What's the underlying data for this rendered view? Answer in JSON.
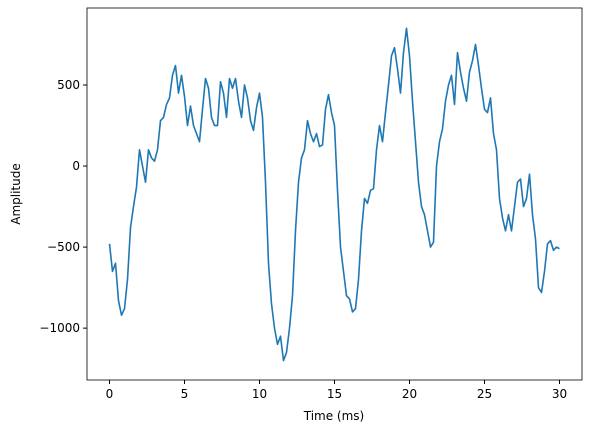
{
  "chart_data": {
    "type": "line",
    "xlabel": "Time (ms)",
    "ylabel": "Amplitude",
    "color": "#1f77b4",
    "x": [
      0,
      0.2,
      0.4,
      0.6,
      0.8,
      1.0,
      1.2,
      1.4,
      1.6,
      1.8,
      2.0,
      2.2,
      2.4,
      2.6,
      2.8,
      3.0,
      3.2,
      3.4,
      3.6,
      3.8,
      4.0,
      4.2,
      4.4,
      4.6,
      4.8,
      5.0,
      5.2,
      5.4,
      5.6,
      5.8,
      6.0,
      6.2,
      6.4,
      6.6,
      6.8,
      7.0,
      7.2,
      7.4,
      7.6,
      7.8,
      8.0,
      8.2,
      8.4,
      8.6,
      8.8,
      9.0,
      9.2,
      9.4,
      9.6,
      9.8,
      10.0,
      10.2,
      10.4,
      10.6,
      10.8,
      11.0,
      11.2,
      11.4,
      11.6,
      11.8,
      12.0,
      12.2,
      12.4,
      12.6,
      12.8,
      13.0,
      13.2,
      13.4,
      13.6,
      13.8,
      14.0,
      14.2,
      14.4,
      14.6,
      14.8,
      15.0,
      15.2,
      15.4,
      15.6,
      15.8,
      16.0,
      16.2,
      16.4,
      16.6,
      16.8,
      17.0,
      17.2,
      17.4,
      17.6,
      17.8,
      18.0,
      18.2,
      18.4,
      18.6,
      18.8,
      19.0,
      19.2,
      19.4,
      19.6,
      19.8,
      20.0,
      20.2,
      20.4,
      20.6,
      20.8,
      21.0,
      21.2,
      21.4,
      21.6,
      21.8,
      22.0,
      22.2,
      22.4,
      22.6,
      22.8,
      23.0,
      23.2,
      23.4,
      23.6,
      23.8,
      24.0,
      24.2,
      24.4,
      24.6,
      24.8,
      25.0,
      25.2,
      25.4,
      25.6,
      25.8,
      26.0,
      26.2,
      26.4,
      26.6,
      26.8,
      27.0,
      27.2,
      27.4,
      27.6,
      27.8,
      28.0,
      28.2,
      28.4,
      28.6,
      28.8,
      29.0,
      29.2,
      29.4,
      29.6,
      29.8,
      30.0
    ],
    "values": [
      -480,
      -650,
      -600,
      -830,
      -920,
      -880,
      -700,
      -380,
      -250,
      -130,
      100,
      0,
      -100,
      100,
      50,
      30,
      100,
      280,
      300,
      380,
      420,
      560,
      620,
      450,
      560,
      430,
      250,
      370,
      250,
      200,
      150,
      350,
      540,
      480,
      300,
      250,
      250,
      520,
      450,
      300,
      540,
      480,
      540,
      400,
      300,
      500,
      420,
      280,
      220,
      360,
      450,
      300,
      -100,
      -600,
      -850,
      -1000,
      -1100,
      -1050,
      -1200,
      -1150,
      -1000,
      -800,
      -400,
      -100,
      50,
      100,
      280,
      200,
      150,
      200,
      120,
      130,
      350,
      440,
      330,
      250,
      -150,
      -500,
      -650,
      -800,
      -820,
      -900,
      -880,
      -700,
      -400,
      -200,
      -230,
      -150,
      -140,
      100,
      250,
      150,
      330,
      500,
      680,
      730,
      600,
      450,
      700,
      850,
      680,
      400,
      150,
      -100,
      -250,
      -300,
      -400,
      -500,
      -470,
      0,
      150,
      230,
      400,
      500,
      560,
      380,
      700,
      580,
      480,
      400,
      580,
      650,
      750,
      620,
      480,
      350,
      330,
      420,
      200,
      100,
      -200,
      -320,
      -400,
      -300,
      -400,
      -250,
      -100,
      -80,
      -250,
      -200,
      -50,
      -300,
      -450,
      -750,
      -780,
      -650,
      -480,
      -460,
      -520,
      -500,
      -510
    ],
    "xlim": [
      -1.5,
      31.5
    ],
    "xticks": [
      0,
      5,
      10,
      15,
      20,
      25,
      30
    ],
    "ylim": [
      -1320,
      975
    ],
    "yticks": [
      {
        "value": -1000,
        "label": "−1000"
      },
      {
        "value": -500,
        "label": "−500"
      },
      0,
      500
    ]
  }
}
